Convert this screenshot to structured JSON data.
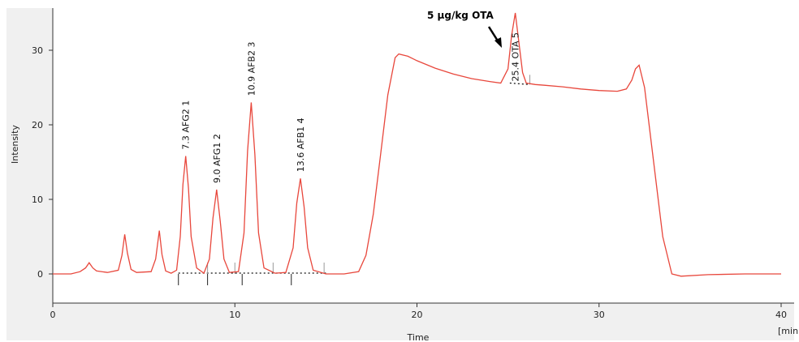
{
  "chart_data": {
    "type": "line",
    "title": "",
    "xlabel": "Time",
    "x_unit_label": "[min",
    "ylabel": "Intensity",
    "xlim": [
      0,
      40
    ],
    "ylim": [
      -4,
      35
    ],
    "x_ticks": [
      0,
      10,
      20,
      30,
      40
    ],
    "y_ticks": [
      0,
      10,
      20,
      30
    ],
    "grid": false,
    "line_color": "#e8473c",
    "series": [
      {
        "x": [
          0,
          1,
          1.5,
          1.8,
          2.0,
          2.2,
          2.4,
          3.0,
          3.6,
          3.8,
          3.95,
          4.1,
          4.3,
          4.6,
          5.4,
          5.65,
          5.85,
          6.0,
          6.2,
          6.5,
          6.8,
          7.0,
          7.15,
          7.3,
          7.45,
          7.6,
          7.9,
          8.3,
          8.6,
          8.8,
          9.0,
          9.2,
          9.4,
          9.7,
          10.2,
          10.5,
          10.7,
          10.9,
          11.1,
          11.3,
          11.6,
          12.2,
          12.8,
          13.2,
          13.4,
          13.6,
          13.8,
          14.0,
          14.3,
          15,
          16,
          16.8,
          17.2,
          17.6,
          18.0,
          18.4,
          18.8,
          19.0,
          19.5,
          20,
          21,
          22,
          23,
          24,
          24.6,
          25.0,
          25.2,
          25.4,
          25.6,
          25.8,
          26.0,
          26.5,
          27,
          28,
          29,
          30,
          31,
          31.5,
          31.8,
          32.0,
          32.2,
          32.5,
          33.0,
          33.5,
          34.0,
          34.5,
          36,
          38,
          40
        ],
        "y": [
          0,
          0,
          0.3,
          0.8,
          1.5,
          0.8,
          0.4,
          0.2,
          0.5,
          2.5,
          5.3,
          2.8,
          0.6,
          0.2,
          0.3,
          2.0,
          5.8,
          2.6,
          0.4,
          0.1,
          0.5,
          5.0,
          12.0,
          15.8,
          11.5,
          5.0,
          0.8,
          0.1,
          2.0,
          7.5,
          11.3,
          7.0,
          2.0,
          0.2,
          0.3,
          5.5,
          16.5,
          23.0,
          16.0,
          5.5,
          0.8,
          0.1,
          0.2,
          3.5,
          9.5,
          12.8,
          9.0,
          3.5,
          0.5,
          0,
          0,
          0.3,
          2.5,
          8.0,
          16.0,
          24.0,
          29.0,
          29.5,
          29.2,
          28.6,
          27.6,
          26.8,
          26.2,
          25.8,
          25.6,
          27.5,
          32.0,
          35.0,
          31.0,
          27.0,
          25.6,
          25.4,
          25.3,
          25.1,
          24.8,
          24.6,
          24.5,
          24.8,
          26.0,
          27.5,
          28.0,
          25.0,
          15.0,
          5.0,
          0,
          -0.3,
          -0.1,
          0,
          0
        ]
      }
    ],
    "peaks": [
      {
        "label": "7.3 AFG2",
        "num": "1",
        "x": 7.3,
        "y": 15.8
      },
      {
        "label": "9.0 AFG1",
        "num": "2",
        "x": 9.0,
        "y": 11.3
      },
      {
        "label": "10.9 AFB2",
        "num": "3",
        "x": 10.9,
        "y": 23.0
      },
      {
        "label": "13.6 AFB1",
        "num": "4",
        "x": 13.6,
        "y": 12.8
      },
      {
        "label": "25.4 OTA",
        "num": "5",
        "x": 25.4,
        "y": 35.0
      }
    ],
    "annotations": [
      {
        "text": "5 µg/kg OTA"
      }
    ]
  }
}
